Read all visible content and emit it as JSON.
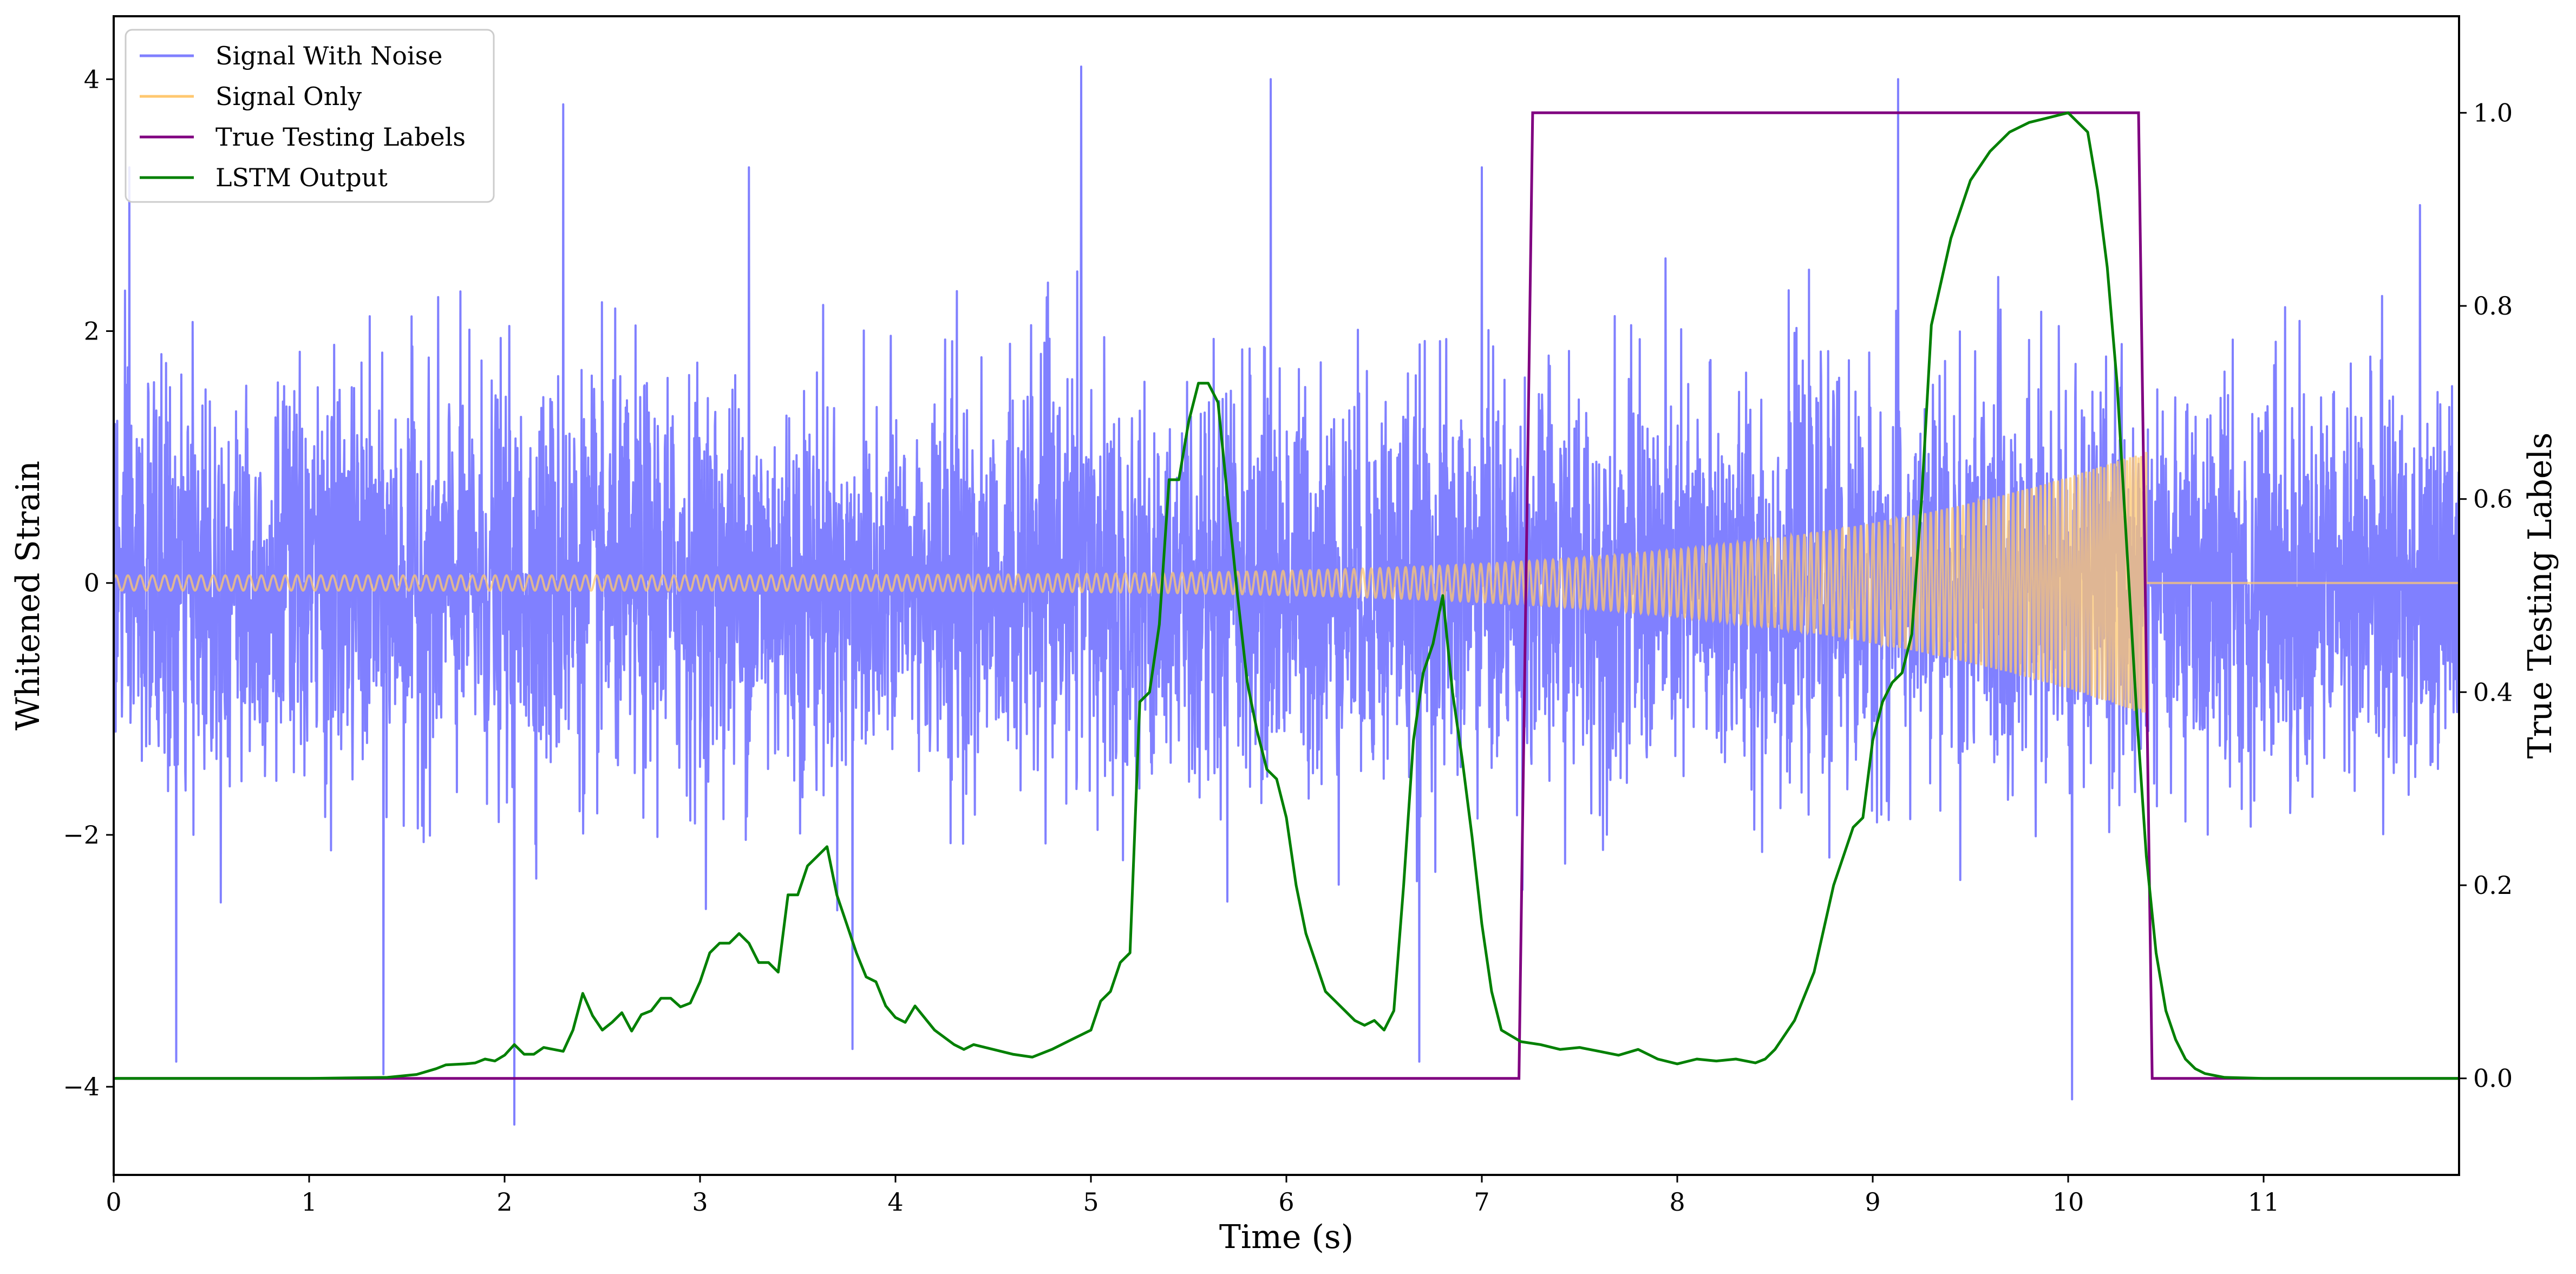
{
  "chart_data": {
    "type": "line",
    "xlabel": "Time (s)",
    "ylabel": "Whitened Strain",
    "y2label": "True Testing Labels",
    "xlim": [
      0,
      12
    ],
    "ylim": [
      -4.7,
      4.5
    ],
    "y2lim": [
      -0.1,
      1.1
    ],
    "xticks": [
      0,
      1,
      2,
      3,
      4,
      5,
      6,
      7,
      8,
      9,
      10,
      11
    ],
    "yticks": [
      -4,
      -2,
      0,
      2,
      4
    ],
    "y2ticks": [
      0.0,
      0.2,
      0.4,
      0.6,
      0.8,
      1.0
    ],
    "legend_position": "upper-left",
    "grid": false,
    "series": [
      {
        "name": "Signal With Noise",
        "axis": "left",
        "color": "#8080ff",
        "description_points": {
          "x_range": [
            0,
            12
          ],
          "typical_amplitude": 1.9,
          "spikes": [
            {
              "x": 0.08,
              "y": 3.3
            },
            {
              "x": 0.32,
              "y": -3.8
            },
            {
              "x": 1.38,
              "y": -3.9
            },
            {
              "x": 2.05,
              "y": -4.3
            },
            {
              "x": 2.3,
              "y": 3.8
            },
            {
              "x": 3.25,
              "y": 3.3
            },
            {
              "x": 3.78,
              "y": -3.7
            },
            {
              "x": 4.95,
              "y": 4.1
            },
            {
              "x": 5.92,
              "y": 4.0
            },
            {
              "x": 6.68,
              "y": -3.8
            },
            {
              "x": 7.0,
              "y": 3.3
            },
            {
              "x": 9.13,
              "y": 4.0
            },
            {
              "x": 10.02,
              "y": -4.1
            },
            {
              "x": 11.8,
              "y": 3.0
            }
          ]
        }
      },
      {
        "name": "Signal Only",
        "axis": "left",
        "color": "#ffc870",
        "chirp": {
          "start": 0,
          "end": 10.4,
          "amp_start": 0.06,
          "amp_end": 1.05
        }
      },
      {
        "name": "True Testing Labels",
        "axis": "right",
        "color": "#800080",
        "x": [
          0,
          7.19,
          7.26,
          10.36,
          10.43,
          12
        ],
        "y": [
          0,
          0,
          1,
          1,
          0,
          0
        ]
      },
      {
        "name": "LSTM Output",
        "axis": "right",
        "color": "#008000",
        "x": [
          0,
          1.0,
          1.4,
          1.55,
          1.65,
          1.7,
          1.8,
          1.85,
          1.9,
          1.95,
          2.0,
          2.05,
          2.1,
          2.15,
          2.2,
          2.25,
          2.3,
          2.35,
          2.4,
          2.45,
          2.5,
          2.55,
          2.6,
          2.65,
          2.7,
          2.75,
          2.8,
          2.85,
          2.9,
          2.95,
          3.0,
          3.05,
          3.1,
          3.15,
          3.2,
          3.25,
          3.3,
          3.35,
          3.4,
          3.45,
          3.5,
          3.55,
          3.6,
          3.65,
          3.7,
          3.75,
          3.8,
          3.85,
          3.9,
          3.95,
          4.0,
          4.05,
          4.1,
          4.2,
          4.3,
          4.35,
          4.4,
          4.5,
          4.6,
          4.7,
          4.8,
          4.9,
          5.0,
          5.05,
          5.1,
          5.15,
          5.2,
          5.25,
          5.3,
          5.35,
          5.4,
          5.45,
          5.5,
          5.55,
          5.6,
          5.65,
          5.7,
          5.75,
          5.8,
          5.85,
          5.9,
          5.95,
          6.0,
          6.05,
          6.1,
          6.15,
          6.2,
          6.25,
          6.3,
          6.35,
          6.4,
          6.45,
          6.5,
          6.55,
          6.6,
          6.65,
          6.7,
          6.75,
          6.8,
          6.85,
          6.9,
          6.95,
          7.0,
          7.05,
          7.1,
          7.2,
          7.3,
          7.4,
          7.5,
          7.6,
          7.7,
          7.8,
          7.9,
          8.0,
          8.1,
          8.2,
          8.3,
          8.4,
          8.45,
          8.5,
          8.6,
          8.7,
          8.8,
          8.9,
          8.95,
          9.0,
          9.05,
          9.1,
          9.15,
          9.2,
          9.25,
          9.3,
          9.4,
          9.5,
          9.6,
          9.7,
          9.8,
          9.9,
          10.0,
          10.05,
          10.1,
          10.15,
          10.2,
          10.25,
          10.3,
          10.35,
          10.4,
          10.45,
          10.5,
          10.55,
          10.6,
          10.65,
          10.7,
          10.8,
          11.0,
          12.0
        ],
        "y": [
          0.0,
          0.0,
          0.001,
          0.004,
          0.01,
          0.014,
          0.015,
          0.016,
          0.02,
          0.018,
          0.024,
          0.035,
          0.025,
          0.025,
          0.032,
          0.03,
          0.028,
          0.05,
          0.088,
          0.065,
          0.05,
          0.058,
          0.068,
          0.049,
          0.066,
          0.07,
          0.083,
          0.083,
          0.074,
          0.078,
          0.1,
          0.13,
          0.14,
          0.14,
          0.15,
          0.14,
          0.12,
          0.12,
          0.11,
          0.19,
          0.19,
          0.22,
          0.23,
          0.24,
          0.19,
          0.16,
          0.13,
          0.105,
          0.1,
          0.075,
          0.063,
          0.058,
          0.075,
          0.05,
          0.035,
          0.03,
          0.035,
          0.03,
          0.025,
          0.022,
          0.03,
          0.04,
          0.05,
          0.08,
          0.09,
          0.12,
          0.13,
          0.39,
          0.4,
          0.47,
          0.62,
          0.62,
          0.68,
          0.72,
          0.72,
          0.7,
          0.6,
          0.5,
          0.41,
          0.36,
          0.32,
          0.31,
          0.27,
          0.2,
          0.15,
          0.12,
          0.09,
          0.08,
          0.07,
          0.06,
          0.055,
          0.06,
          0.05,
          0.07,
          0.2,
          0.35,
          0.42,
          0.45,
          0.5,
          0.4,
          0.33,
          0.25,
          0.16,
          0.09,
          0.05,
          0.038,
          0.035,
          0.03,
          0.032,
          0.028,
          0.024,
          0.03,
          0.02,
          0.015,
          0.02,
          0.018,
          0.02,
          0.016,
          0.02,
          0.03,
          0.06,
          0.11,
          0.2,
          0.26,
          0.27,
          0.35,
          0.39,
          0.41,
          0.42,
          0.46,
          0.6,
          0.78,
          0.87,
          0.93,
          0.96,
          0.98,
          0.99,
          0.995,
          1.0,
          0.99,
          0.98,
          0.92,
          0.84,
          0.72,
          0.55,
          0.38,
          0.23,
          0.13,
          0.07,
          0.04,
          0.02,
          0.01,
          0.005,
          0.001,
          0.0,
          0.0
        ]
      }
    ]
  }
}
